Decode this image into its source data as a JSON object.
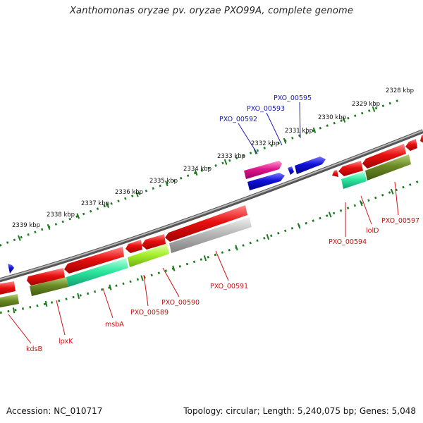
{
  "title": "Xanthomonas oryzae pv. oryzae PXO99A, complete genome",
  "footer": {
    "accession": "Accession: NC_010717",
    "summary": "Topology: circular; Length: 5,240,075 bp; Genes: 5,048"
  },
  "scale_labels": [
    "2328 kbp",
    "2329 kbp",
    "2330 kbp",
    "2331 kbp",
    "2332 kbp",
    "2333 kbp",
    "2334 kbp",
    "2335 kbp",
    "2336 kbp",
    "2337 kbp",
    "2338 kbp",
    "2339 kbp"
  ],
  "gene_labels_forward": [
    "PXO_00595",
    "PXO_00593",
    "PXO_00592"
  ],
  "gene_labels_reverse": [
    "PXO_00597",
    "lolD",
    "PXO_00594",
    "PXO_00591",
    "PXO_00590",
    "PXO_00589",
    "msbA",
    "lpxK",
    "kdsB"
  ],
  "colors": {
    "backbone": "#7a7a7a",
    "scale_ticks": "#1e7a1e",
    "forward_label": "#1a1ab4",
    "reverse_label": "#cc1010",
    "gene_red": "#e81010",
    "gene_blue": "#1010d8",
    "gene_pink": "#e0188c",
    "cog_olive": "#6b8a25",
    "cog_teal": "#2ee8a0",
    "cog_lime": "#a8f030",
    "cog_gray": "#b8b8b8"
  }
}
